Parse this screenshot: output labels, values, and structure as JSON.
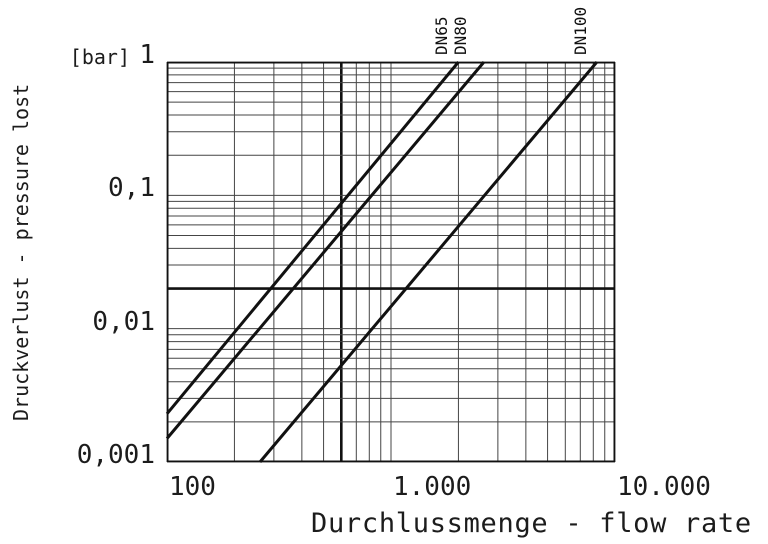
{
  "y_axis": {
    "title": "Druckverlust - pressure lost",
    "unit_label": "[bar]",
    "ticks": [
      {
        "value": 1,
        "label": "1"
      },
      {
        "value": 0.1,
        "label": "0,1"
      },
      {
        "value": 0.01,
        "label": "0,01"
      },
      {
        "value": 0.001,
        "label": "0,001"
      }
    ]
  },
  "x_axis": {
    "title": "Durchlussmenge - flow rate",
    "ticks": [
      {
        "value": 100,
        "label": "100"
      },
      {
        "value": 1000,
        "label": "1.000"
      },
      {
        "value": 10000,
        "label": "10.000"
      }
    ]
  },
  "chart_data": {
    "type": "line",
    "x_scale": "log",
    "y_scale": "log",
    "xlim": [
      100,
      10000
    ],
    "ylim": [
      0.001,
      1
    ],
    "x_label": "Durchlussmenge - flow rate",
    "y_label": "Druckverlust - pressure lost",
    "y_unit": "bar",
    "line_slope_loglog": 2,
    "grid": {
      "x_lines": [
        100,
        200,
        300,
        400,
        500,
        600,
        700,
        800,
        900,
        1000,
        2000,
        3000,
        4000,
        5000,
        6000,
        7000,
        8000,
        9000,
        10000
      ],
      "y_lines": [
        1,
        0.9,
        0.8,
        0.7,
        0.6,
        0.5,
        0.4,
        0.3,
        0.2,
        0.1,
        0.09,
        0.08,
        0.07,
        0.06,
        0.05,
        0.04,
        0.03,
        0.02,
        0.01,
        0.009,
        0.008,
        0.007,
        0.006,
        0.005,
        0.004,
        0.003,
        0.002,
        0.001
      ],
      "x_emphasis": [
        600
      ],
      "y_emphasis": [
        0.02
      ]
    },
    "series": [
      {
        "name": "DN65",
        "points": [
          [
            100,
            0.0023
          ],
          [
            2000,
            1.0
          ]
        ]
      },
      {
        "name": "DN80",
        "points": [
          [
            100,
            0.0015
          ],
          [
            2600,
            1.0
          ]
        ]
      },
      {
        "name": "DN100",
        "points": [
          [
            260,
            0.001
          ],
          [
            8300,
            1.0
          ]
        ]
      }
    ]
  },
  "colors": {
    "ink": "#111111",
    "grid": "#454545",
    "text": "#1c1c1c",
    "background": "#ffffff"
  }
}
